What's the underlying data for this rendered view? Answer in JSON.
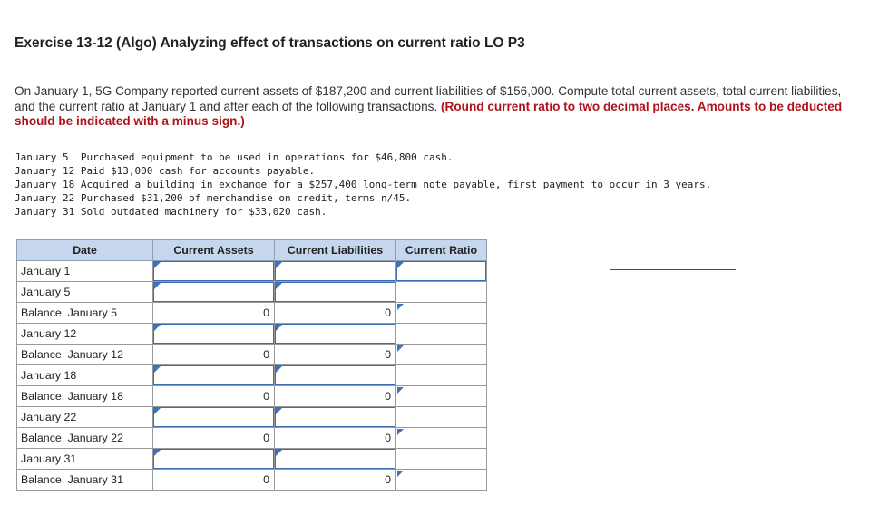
{
  "title": "Exercise 13-12 (Algo) Analyzing effect of transactions on current ratio LO P3",
  "intro": {
    "text": "On January 1, 5G Company reported current assets of $187,200 and current liabilities of $156,000. Compute total current assets, total current liabilities, and the current ratio at January 1 and after each of the following transactions.",
    "red": "(Round current ratio to two decimal places. Amounts to be deducted should be indicated with a minus sign.)"
  },
  "transactions": [
    {
      "date": "January 5 ",
      "text": "Purchased equipment to be used in operations for $46,800 cash."
    },
    {
      "date": "January 12",
      "text": "Paid $13,000 cash for accounts payable."
    },
    {
      "date": "January 18",
      "text": "Acquired a building in exchange for a $257,400 long-term note payable, first payment to occur in 3 years."
    },
    {
      "date": "January 22",
      "text": "Purchased $31,200 of merchandise on credit, terms n/45."
    },
    {
      "date": "January 31",
      "text": "Sold outdated machinery for $33,020 cash."
    }
  ],
  "table": {
    "headers": [
      "Date",
      "Current Assets",
      "Current Liabilities",
      "Current Ratio"
    ],
    "rows": [
      {
        "label": "January 1",
        "type": "input",
        "assets": "",
        "liabilities": "",
        "ratio": ""
      },
      {
        "label": "January 5",
        "type": "input",
        "assets": "",
        "liabilities": ""
      },
      {
        "label": "Balance, January 5",
        "type": "balance",
        "assets": "0",
        "liabilities": "0",
        "ratio": ""
      },
      {
        "label": "January 12",
        "type": "input",
        "assets": "",
        "liabilities": ""
      },
      {
        "label": "Balance, January 12",
        "type": "balance",
        "assets": "0",
        "liabilities": "0",
        "ratio": ""
      },
      {
        "label": "January 18",
        "type": "input",
        "assets": "",
        "liabilities": ""
      },
      {
        "label": "Balance, January 18",
        "type": "balance",
        "assets": "0",
        "liabilities": "0",
        "ratio": ""
      },
      {
        "label": "January 22",
        "type": "input",
        "assets": "",
        "liabilities": ""
      },
      {
        "label": "Balance, January 22",
        "type": "balance",
        "assets": "0",
        "liabilities": "0",
        "ratio": ""
      },
      {
        "label": "January 31",
        "type": "input",
        "assets": "",
        "liabilities": ""
      },
      {
        "label": "Balance, January 31",
        "type": "balance",
        "assets": "0",
        "liabilities": "0",
        "ratio": ""
      }
    ]
  }
}
